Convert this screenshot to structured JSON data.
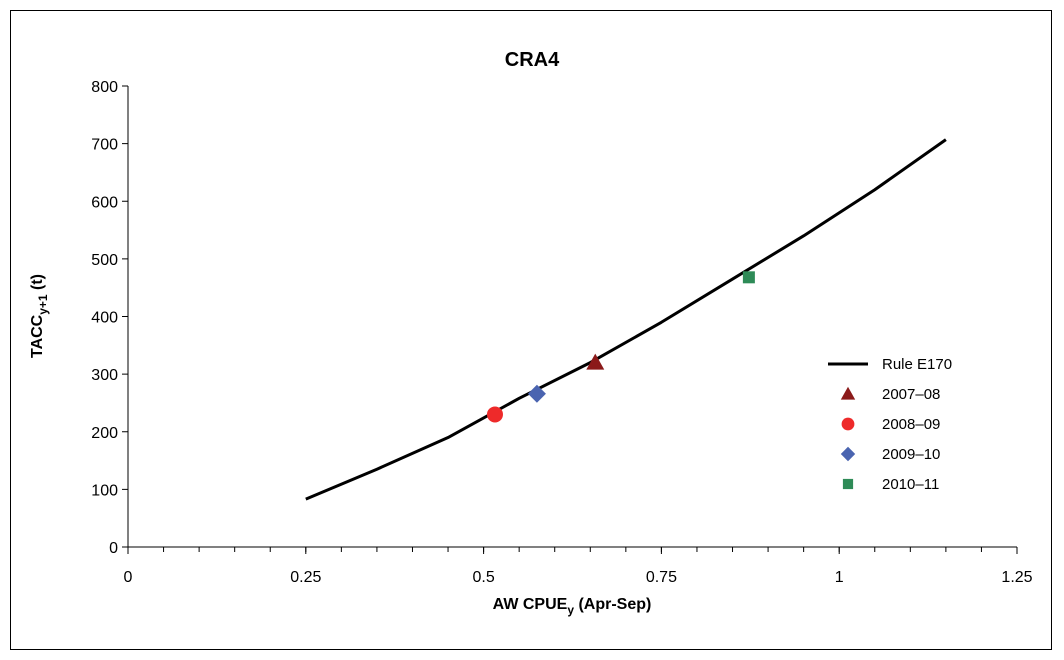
{
  "chart_data": {
    "type": "line",
    "title": "CRA4",
    "xlabel": {
      "main": "AW CPUE",
      "sub": "y",
      "suffix": " (Apr-Sep)"
    },
    "ylabel": {
      "main": "TACC",
      "sub": "y+1",
      "suffix": " (t)"
    },
    "xlim": [
      0,
      1.25
    ],
    "ylim": [
      0,
      800
    ],
    "xticks": [
      0,
      0.25,
      0.5,
      0.75,
      1,
      1.25
    ],
    "xtick_labels": [
      "0",
      "0.25",
      "0.5",
      "0.75",
      "1",
      "1.25"
    ],
    "xminor_step": 0.05,
    "yticks": [
      0,
      100,
      200,
      300,
      400,
      500,
      600,
      700,
      800
    ],
    "ytick_labels": [
      "0",
      "100",
      "200",
      "300",
      "400",
      "500",
      "600",
      "700",
      "800"
    ],
    "grid": false,
    "legend_position": "right",
    "series": [
      {
        "name": "Rule E170",
        "kind": "line",
        "color": "#000000",
        "x": [
          0.25,
          0.35,
          0.45,
          0.55,
          0.65,
          0.75,
          0.85,
          0.95,
          1.05,
          1.15
        ],
        "y": [
          83,
          135,
          190,
          258,
          320,
          390,
          465,
          540,
          620,
          707
        ]
      },
      {
        "name": "2007–08",
        "kind": "point",
        "marker": "triangle",
        "color": "#8B1A1A",
        "x": [
          0.657
        ],
        "y": [
          320
        ]
      },
      {
        "name": "2008–09",
        "kind": "point",
        "marker": "circle",
        "color": "#EE2A2A",
        "x": [
          0.516
        ],
        "y": [
          230
        ]
      },
      {
        "name": "2009–10",
        "kind": "point",
        "marker": "diamond",
        "color": "#4A64B0",
        "x": [
          0.575
        ],
        "y": [
          266
        ]
      },
      {
        "name": "2010–11",
        "kind": "point",
        "marker": "square",
        "color": "#2E8B57",
        "x": [
          0.873
        ],
        "y": [
          468
        ]
      }
    ]
  }
}
